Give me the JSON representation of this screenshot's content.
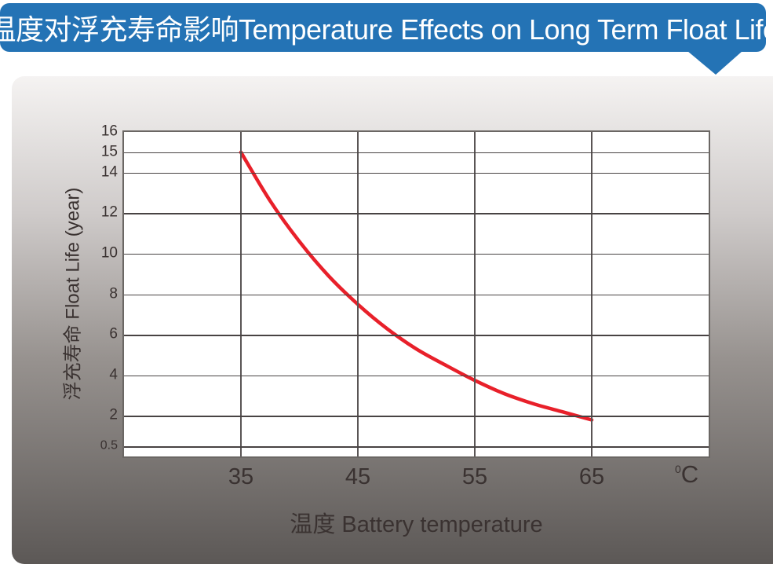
{
  "banner": {
    "title": "温度对浮充寿命影响Temperature Effects on Long Term Float Life"
  },
  "chart_data": {
    "type": "line",
    "title": "温度对浮充寿命影响Temperature Effects on Long Term Float Life",
    "xlabel": "温度  Battery temperature",
    "x_unit": {
      "sup": "0",
      "main": "C"
    },
    "ylabel": "浮充寿命  Float Life (year)",
    "xlim": [
      25,
      75
    ],
    "ylim": [
      0,
      16
    ],
    "x_ticks": [
      35,
      45,
      55,
      65
    ],
    "y_ticks": [
      16,
      15,
      14,
      12,
      10,
      8,
      6,
      4,
      2,
      0.5
    ],
    "grid": true,
    "legend": false,
    "series": [
      {
        "name": "float-life-vs-temperature",
        "color": "#e8202a",
        "x": [
          35,
          37.5,
          40,
          42.5,
          45,
          47.5,
          50,
          52.5,
          55,
          57.5,
          60,
          62.5,
          65
        ],
        "y": [
          15,
          12.6,
          10.6,
          8.9,
          7.5,
          6.3,
          5.3,
          4.5,
          3.75,
          3.1,
          2.6,
          2.2,
          1.8
        ]
      }
    ]
  },
  "colors": {
    "banner_bg": "#2473b5",
    "banner_text": "#ffffff",
    "plot_bg": "#ffffff",
    "plot_border": "#6b6764",
    "grid_h": "#484343",
    "grid_v": "#5a5555",
    "tick_text": "#3a3231",
    "curve": "#e8202a"
  }
}
